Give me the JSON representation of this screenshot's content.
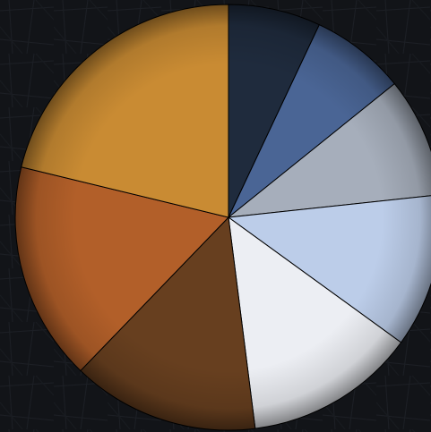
{
  "chart_data": {
    "type": "pie",
    "title": "",
    "start_angle_deg": 0,
    "direction": "clockwise",
    "slices": [
      {
        "value": 7.0,
        "color": "#1f2b3d"
      },
      {
        "value": 7.2,
        "color": "#4a6595"
      },
      {
        "value": 9.1,
        "color": "#a6aebb"
      },
      {
        "value": 11.7,
        "color": "#bccde9"
      },
      {
        "value": 13.0,
        "color": "#eceef3"
      },
      {
        "value": 14.2,
        "color": "#673f1f"
      },
      {
        "value": 16.6,
        "color": "#b25f29"
      },
      {
        "value": 21.2,
        "color": "#c98b33"
      }
    ]
  },
  "background_color": "#111316",
  "slice_edge_color": "#000000"
}
